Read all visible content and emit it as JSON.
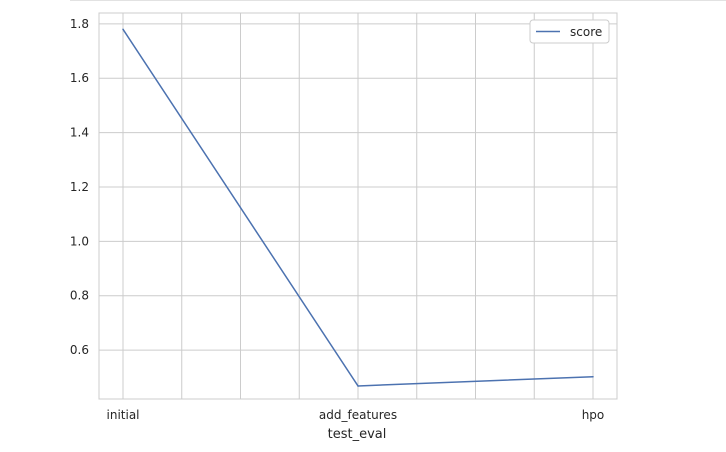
{
  "chart_data": {
    "type": "line",
    "categories": [
      "initial",
      "add_features",
      "hpo"
    ],
    "series": [
      {
        "name": "score",
        "values": [
          1.78,
          0.468,
          0.502
        ],
        "color": "#4c72b0"
      }
    ],
    "title": "",
    "xlabel": "test_eval",
    "ylabel": "",
    "ylim": [
      0.42,
      1.84
    ],
    "yticks": [
      0.6,
      0.8,
      1.0,
      1.2,
      1.4,
      1.6,
      1.8
    ],
    "ytick_labels": [
      "0.6",
      "0.8",
      "1.0",
      "1.2",
      "1.4",
      "1.6",
      "1.8"
    ],
    "grid": true,
    "legend": {
      "placement": "top-right",
      "entries": [
        "score"
      ]
    },
    "colors": {
      "grid": "#cccccc",
      "line": "#4c72b0",
      "frame": "#cccccc"
    }
  }
}
